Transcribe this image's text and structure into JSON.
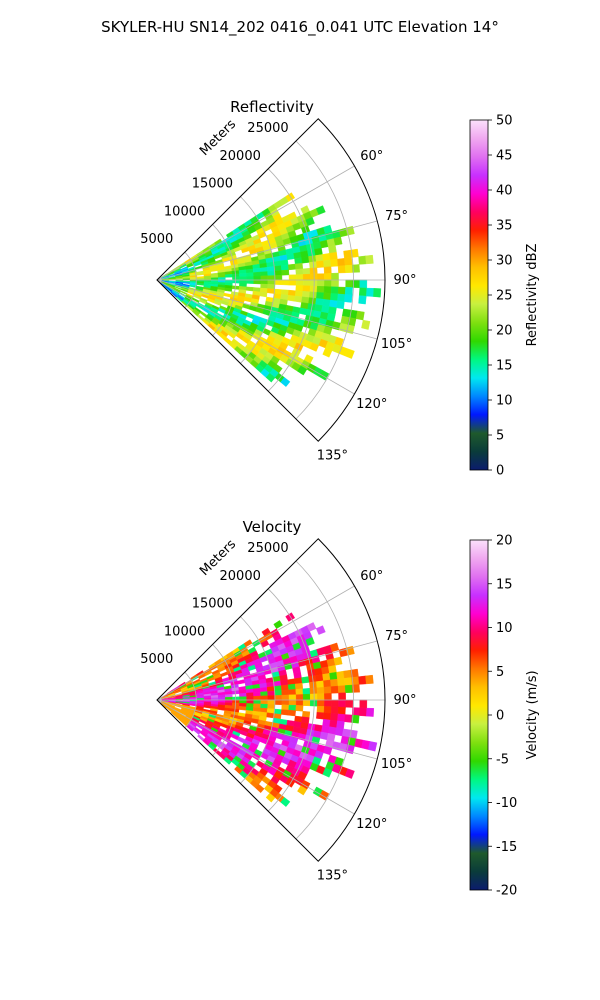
{
  "figure": {
    "suptitle": "SKYLER-HU  SN14_202  0416_0.041 UTC Elevation 14°"
  },
  "chart_data": [
    {
      "type": "heatmap",
      "subtype": "polar-sector-ppi",
      "title": "Reflectivity",
      "radial_axis_label": "Meters",
      "radial_ticks": [
        5000,
        10000,
        15000,
        20000,
        25000
      ],
      "radial_tick_labels": [
        "5000",
        "10000",
        "15000",
        "20000",
        "25000"
      ],
      "range_max": 29000,
      "azimuth_range_deg": [
        45,
        135
      ],
      "azimuth_ticks": [
        60,
        75,
        90,
        105,
        120,
        135
      ],
      "azimuth_tick_labels": [
        "60°",
        "75°",
        "90°",
        "105°",
        "120°",
        "135°"
      ],
      "grid": true,
      "colorbar": {
        "label": "Reflectivity dBZ",
        "min": 0,
        "max": 50,
        "ticks": [
          0,
          5,
          10,
          15,
          20,
          25,
          30,
          35,
          40,
          45,
          50
        ],
        "tick_labels": [
          "0",
          "5",
          "10",
          "15",
          "20",
          "25",
          "30",
          "35",
          "40",
          "45",
          "50"
        ]
      },
      "data_extent_deg": [
        57,
        130
      ]
    },
    {
      "type": "heatmap",
      "subtype": "polar-sector-ppi",
      "title": "Velocity",
      "radial_axis_label": "Meters",
      "radial_ticks": [
        5000,
        10000,
        15000,
        20000,
        25000
      ],
      "radial_tick_labels": [
        "5000",
        "10000",
        "15000",
        "20000",
        "25000"
      ],
      "range_max": 29000,
      "azimuth_range_deg": [
        45,
        135
      ],
      "azimuth_ticks": [
        60,
        75,
        90,
        105,
        120,
        135
      ],
      "azimuth_tick_labels": [
        "60°",
        "75°",
        "90°",
        "105°",
        "120°",
        "135°"
      ],
      "grid": true,
      "colorbar": {
        "label": "Velocity (m/s)",
        "min": -20,
        "max": 20,
        "ticks": [
          -20,
          -15,
          -10,
          -5,
          0,
          5,
          10,
          15,
          20
        ],
        "tick_labels": [
          "-20",
          "-15",
          "-10",
          "-5",
          "0",
          "5",
          "10",
          "15",
          "20"
        ]
      },
      "data_extent_deg": [
        57,
        130
      ]
    }
  ],
  "colors": {
    "colormap_stops": [
      "#0b1c6e",
      "#0a3c3a",
      "#1f5a2c",
      "#0018ff",
      "#0088ff",
      "#00e8f0",
      "#00f880",
      "#30d800",
      "#7fe010",
      "#c8f040",
      "#ffe800",
      "#ffc000",
      "#ff7800",
      "#ff2000",
      "#ff0060",
      "#ff00d0",
      "#c830ff",
      "#e070f0",
      "#f0a8f0",
      "#fbe0fb"
    ]
  }
}
